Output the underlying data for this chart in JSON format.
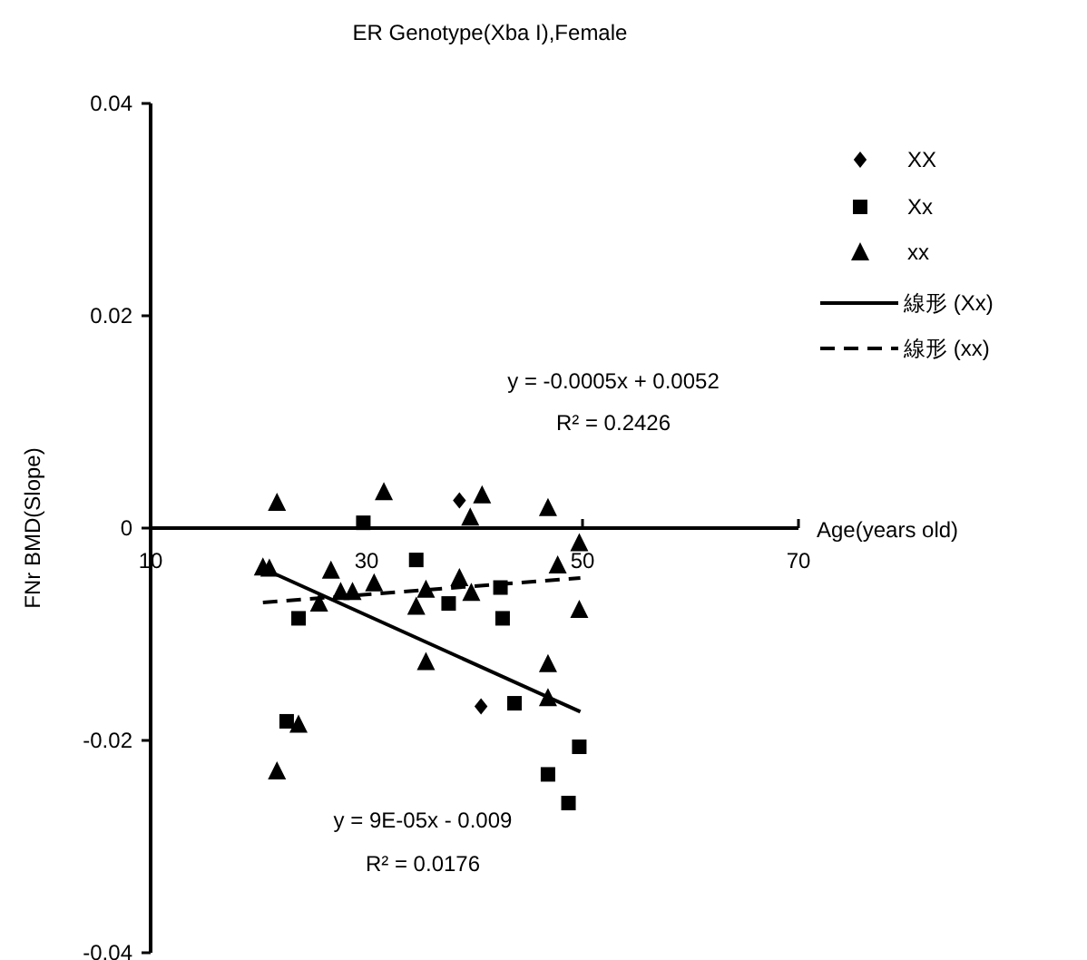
{
  "chart_data": {
    "type": "scatter",
    "title": "ER Genotype(Xba I),Female",
    "xlabel": "Age(years old)",
    "ylabel": "FNr BMD(Slope)",
    "xlim": [
      10,
      70
    ],
    "ylim": [
      -0.04,
      0.04
    ],
    "xticks": [
      10,
      30,
      50,
      70
    ],
    "yticks": [
      -0.04,
      -0.02,
      0,
      0.02,
      0.04
    ],
    "legend": "right",
    "grid": false,
    "annotations": [
      "y = -0.0005x + 0.0052",
      "R² = 0.2426",
      "y = 9E-05x - 0.009",
      "R² = 0.0176"
    ],
    "series": [
      {
        "name": "XX",
        "color": "#000000",
        "marker": "diamond",
        "x": [
          38.6,
          40.6
        ],
        "values": [
          0.0026,
          -0.0168
        ]
      },
      {
        "name": "Xx",
        "color": "#000000",
        "marker": "square",
        "x": [
          29.7,
          34.6,
          42.4,
          23.7,
          37.6,
          42.6,
          43.7,
          22.6,
          49.7,
          46.8,
          48.7
        ],
        "values": [
          0.0005,
          -0.003,
          -0.0056,
          -0.0085,
          -0.0071,
          -0.0085,
          -0.0165,
          -0.0182,
          -0.0206,
          -0.0232,
          -0.0259
        ]
      },
      {
        "name": "xx",
        "color": "#000000",
        "marker": "triangle",
        "x": [
          21.7,
          31.6,
          40.7,
          46.8,
          39.6,
          49.7,
          20.4,
          21.0,
          26.7,
          47.7,
          38.6,
          27.6,
          28.7,
          30.7,
          35.5,
          39.7,
          25.6,
          34.6,
          49.7,
          35.5,
          46.8,
          46.8,
          23.7,
          21.7
        ],
        "values": [
          0.0024,
          0.0034,
          0.0031,
          0.0019,
          0.001,
          -0.0014,
          -0.0037,
          -0.0038,
          -0.004,
          -0.0035,
          -0.0047,
          -0.006,
          -0.006,
          -0.0052,
          -0.0058,
          -0.0061,
          -0.0071,
          -0.0074,
          -0.0077,
          -0.0126,
          -0.0128,
          -0.016,
          -0.0185,
          -0.0229
        ]
      },
      {
        "name": "線形 (Xx)",
        "type": "line",
        "color": "#000000",
        "marker": "none",
        "line_style": "solid",
        "x": [
          20.4,
          49.8
        ],
        "values": [
          -0.0038,
          -0.0173
        ]
      },
      {
        "name": "線形 (xx)",
        "type": "line",
        "color": "#000000",
        "marker": "none",
        "line_style": "dashed",
        "x": [
          20.4,
          49.8
        ],
        "values": [
          -0.007,
          -0.0047
        ]
      }
    ]
  }
}
